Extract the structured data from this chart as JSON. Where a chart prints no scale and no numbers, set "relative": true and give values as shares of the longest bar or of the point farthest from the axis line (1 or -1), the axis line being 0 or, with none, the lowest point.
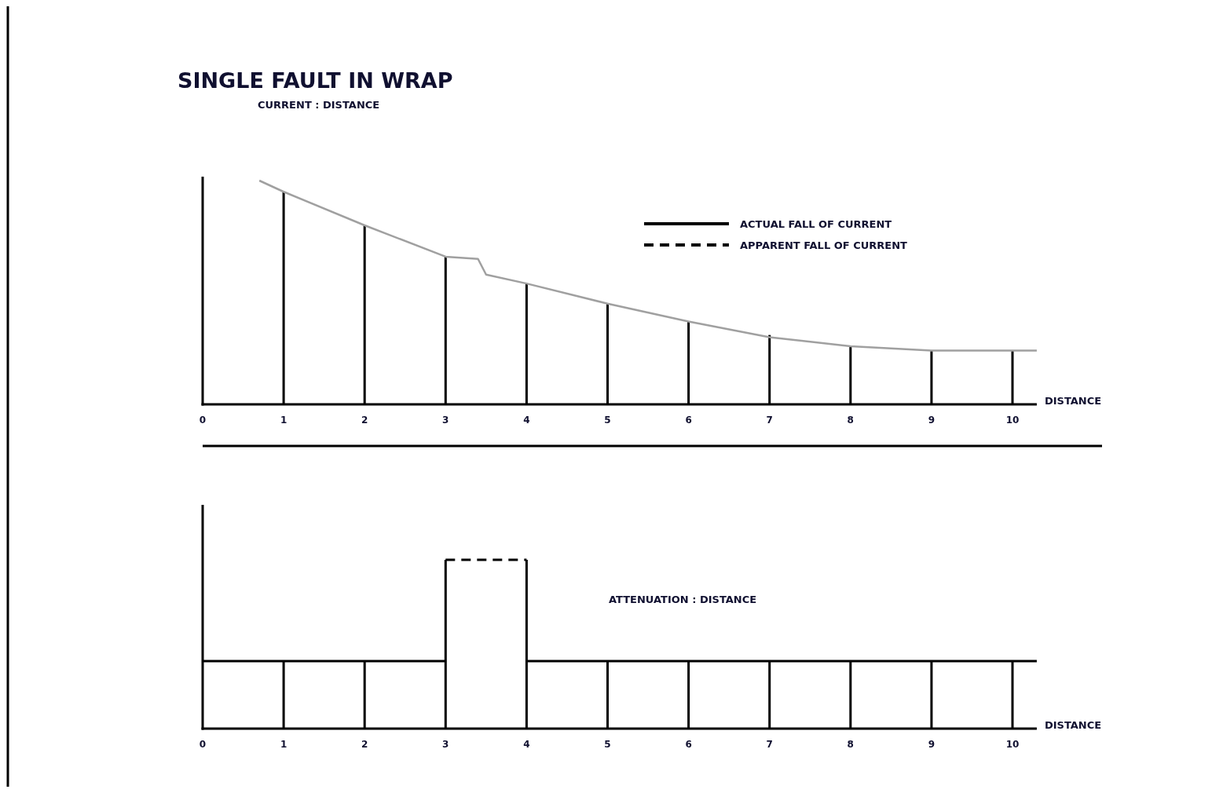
{
  "chart_data": [
    {
      "type": "bar",
      "title": "SINGLE FAULT IN WRAP",
      "subtitle": "CURRENT : DISTANCE",
      "xlabel": "DISTANCE",
      "relative": true,
      "xlim": [
        0,
        10.3
      ],
      "xticks": [
        0,
        1,
        2,
        3,
        4,
        5,
        6,
        7,
        8,
        9,
        10
      ],
      "legend": "top right",
      "series": [
        {
          "name": "ACTUAL FALL OF CURRENT",
          "color": "#000000",
          "x": [
            1,
            2,
            3,
            4,
            5,
            6,
            7,
            8,
            9,
            10
          ],
          "values": [
            0.95,
            0.8,
            0.66,
            0.54,
            0.45,
            0.37,
            0.31,
            0.26,
            0.24,
            0.24
          ]
        },
        {
          "type": "line",
          "color": "#a0a0a0",
          "x": [
            0.7,
            1,
            2,
            3,
            3.4,
            3.5,
            4,
            5,
            6,
            7,
            8,
            9,
            10.3
          ],
          "values": [
            1,
            0.95,
            0.8,
            0.66,
            0.65,
            0.58,
            0.54,
            0.45,
            0.37,
            0.3,
            0.26,
            0.24,
            0.24
          ]
        }
      ]
    },
    {
      "type": "bar",
      "title": "ATTENUATION : DISTANCE",
      "xlabel": "DISTANCE",
      "relative": true,
      "xlim": [
        0,
        10.3
      ],
      "xticks": [
        0,
        1,
        2,
        3,
        4,
        5,
        6,
        7,
        8,
        9,
        10
      ],
      "series": [
        {
          "color": "#000000",
          "x": [
            1,
            2,
            3,
            4,
            5,
            6,
            7,
            8,
            9,
            10
          ],
          "values": [
            0.4,
            0.4,
            1,
            1,
            0.4,
            0.4,
            0.4,
            0.4,
            0.4,
            0.4
          ]
        },
        {
          "type": "line",
          "color": "#000000",
          "x": [
            0,
            3,
            3.5,
            4,
            10.3
          ],
          "values": [
            0.4,
            0.4,
            null,
            0.4,
            0.4
          ]
        },
        {
          "type": "line",
          "name": "APPARENT FALL OF CURRENT",
          "line_style": "dashed",
          "color": "#000000",
          "x": [
            3,
            4
          ],
          "values": [
            1,
            1
          ]
        }
      ]
    }
  ]
}
